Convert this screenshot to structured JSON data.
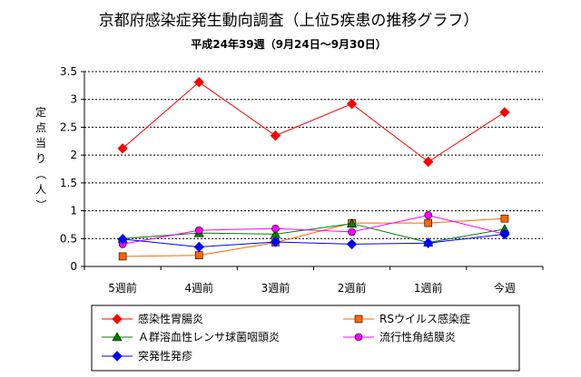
{
  "chart_data": {
    "type": "line",
    "title": "京都府感染症発生動向調査（上位5疾患の推移グラフ）",
    "subtitle": "平成24年39週（9月24日～9月30日）",
    "xlabel": "",
    "ylabel": "定点当り（人）",
    "categories": [
      "5週前",
      "4週前",
      "3週前",
      "2週前",
      "1週前",
      "今週"
    ],
    "ylim": [
      0,
      3.5
    ],
    "yticks": [
      "0",
      "0.5",
      "1",
      "1.5",
      "2",
      "2.5",
      "3",
      "3.5"
    ],
    "grid": "horizontal dashed",
    "legend_position": "bottom",
    "series": [
      {
        "name": "感染性胃腸炎",
        "values": [
          2.12,
          3.31,
          2.35,
          2.92,
          1.88,
          2.77
        ],
        "color": "#ff0000",
        "marker": "diamond"
      },
      {
        "name": "RSウイルス感染症",
        "values": [
          0.18,
          0.2,
          0.43,
          0.78,
          0.78,
          0.86
        ],
        "color": "#ff6600",
        "marker": "square"
      },
      {
        "name": "Ａ群溶血性レンサ球菌咽頭炎",
        "values": [
          0.5,
          0.6,
          0.58,
          0.77,
          0.43,
          0.67
        ],
        "color": "#008000",
        "marker": "triangle"
      },
      {
        "name": "流行性角結膜炎",
        "values": [
          0.4,
          0.65,
          0.68,
          0.62,
          0.92,
          0.58
        ],
        "color": "#ff00ff",
        "marker": "circle"
      },
      {
        "name": "突発性発疹",
        "values": [
          0.49,
          0.35,
          0.44,
          0.4,
          0.42,
          0.58
        ],
        "color": "#0000ff",
        "marker": "diamond"
      }
    ]
  }
}
